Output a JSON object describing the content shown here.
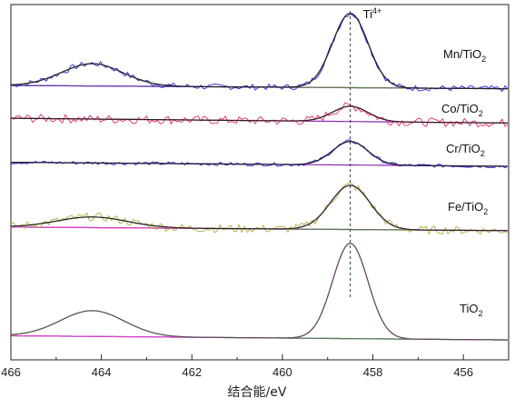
{
  "chart_data": {
    "type": "line",
    "xlabel": "结合能/eV",
    "ylabel": "",
    "xlim": [
      466,
      455
    ],
    "x_reversed": true,
    "xticks": [
      "466",
      "464",
      "462",
      "460",
      "458",
      "456"
    ],
    "xtick_values": [
      466,
      464,
      462,
      460,
      458,
      456
    ],
    "reference_line": {
      "x": 458.5,
      "style": "dashed",
      "label": "Ti",
      "label_sup": "4+"
    },
    "colors": {
      "raw_Mn": "#2a2ad0",
      "raw_Co": "#e0306a",
      "raw_Cr": "#2a2ad0",
      "raw_Fe": "#a8b23a",
      "raw_TiO2": "#444444",
      "fit_Ti": "#6a3ab0",
      "fit_Ti_TiO2": "#e03cc8",
      "fit_sat": "#5a7a4a",
      "baseline": "#8a2ab0",
      "baseline_TiO2": "#2a90d0",
      "envelope": "#222222"
    },
    "panels": [
      {
        "label": "Mn/TiO",
        "label_sub": "2",
        "baseline_y": 0.1,
        "ti_peak": {
          "center": 458.5,
          "height": 1.0,
          "width": 0.55
        },
        "sat_peak": {
          "center": 464.2,
          "height": 0.3,
          "width": 0.95
        },
        "noise": 0.04
      },
      {
        "label": "Co/TiO",
        "label_sub": "2",
        "baseline_y": 0.05,
        "ti_peak": {
          "center": 458.5,
          "height": 0.14,
          "width": 0.55
        },
        "sat_peak": {
          "center": 464.2,
          "height": 0.0,
          "width": 0.95
        },
        "noise": 0.04
      },
      {
        "label": "Cr/TiO",
        "label_sub": "2",
        "baseline_y": 0.05,
        "ti_peak": {
          "center": 458.5,
          "height": 0.26,
          "width": 0.55
        },
        "sat_peak": {
          "center": 464.2,
          "height": 0.0,
          "width": 0.95
        },
        "noise": 0.02
      },
      {
        "label": "Fe/TiO",
        "label_sub": "2",
        "baseline_y": 0.06,
        "ti_peak": {
          "center": 458.5,
          "height": 0.54,
          "width": 0.62
        },
        "sat_peak": {
          "center": 464.2,
          "height": 0.13,
          "width": 1.1
        },
        "noise": 0.05
      },
      {
        "label": "TiO",
        "label_sub": "2",
        "baseline_y": 0.05,
        "ti_peak": {
          "center": 458.5,
          "height": 1.0,
          "width": 0.55
        },
        "sat_peak": {
          "center": 464.2,
          "height": 0.27,
          "width": 1.0
        },
        "noise": 0.0
      }
    ],
    "grid": false,
    "legend": "none"
  }
}
